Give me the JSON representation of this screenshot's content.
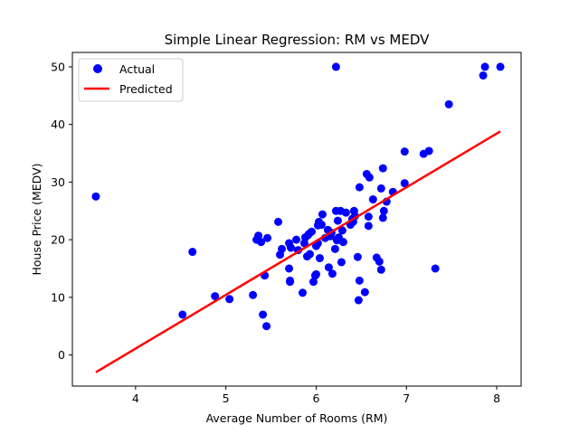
{
  "chart_data": {
    "type": "scatter",
    "title": "Simple Linear Regression: RM vs MEDV",
    "xlabel": "Average Number of Rooms (RM)",
    "ylabel": "House Price (MEDV)",
    "xlim": [
      3.3,
      8.27
    ],
    "ylim": [
      -5.4,
      52.5
    ],
    "xticks": [
      4,
      5,
      6,
      7,
      8
    ],
    "yticks": [
      0,
      10,
      20,
      30,
      40,
      50
    ],
    "grid": false,
    "legend": {
      "position": "top-left",
      "entries": [
        "Actual",
        "Predicted"
      ]
    },
    "colors": {
      "actual": "#0000ff",
      "predicted": "#ff0000"
    },
    "series": [
      {
        "name": "Actual",
        "kind": "scatter",
        "points": [
          [
            3.56,
            27.5
          ],
          [
            4.52,
            7.0
          ],
          [
            4.63,
            17.9
          ],
          [
            4.88,
            10.2
          ],
          [
            5.04,
            9.7
          ],
          [
            5.3,
            10.4
          ],
          [
            5.34,
            20.0
          ],
          [
            5.36,
            20.7
          ],
          [
            5.39,
            19.6
          ],
          [
            5.41,
            7.0
          ],
          [
            5.43,
            13.8
          ],
          [
            5.45,
            5.0
          ],
          [
            5.46,
            20.3
          ],
          [
            5.58,
            23.1
          ],
          [
            5.6,
            17.4
          ],
          [
            5.62,
            18.4
          ],
          [
            5.7,
            19.4
          ],
          [
            5.7,
            15.0
          ],
          [
            5.71,
            12.9
          ],
          [
            5.71,
            12.7
          ],
          [
            5.72,
            18.6
          ],
          [
            5.78,
            20.0
          ],
          [
            5.8,
            18.2
          ],
          [
            5.85,
            10.8
          ],
          [
            5.87,
            19.4
          ],
          [
            5.88,
            20.4
          ],
          [
            5.9,
            17.1
          ],
          [
            5.91,
            20.8
          ],
          [
            5.92,
            21.0
          ],
          [
            5.93,
            17.5
          ],
          [
            5.95,
            21.4
          ],
          [
            5.97,
            12.7
          ],
          [
            5.99,
            13.8
          ],
          [
            6.0,
            14.0
          ],
          [
            6.0,
            18.9
          ],
          [
            6.02,
            19.4
          ],
          [
            6.02,
            22.5
          ],
          [
            6.03,
            23.1
          ],
          [
            6.04,
            16.8
          ],
          [
            6.06,
            22.6
          ],
          [
            6.07,
            24.4
          ],
          [
            6.1,
            20.3
          ],
          [
            6.13,
            21.7
          ],
          [
            6.14,
            15.2
          ],
          [
            6.16,
            20.6
          ],
          [
            6.17,
            21.2
          ],
          [
            6.18,
            14.1
          ],
          [
            6.21,
            18.4
          ],
          [
            6.22,
            25.0
          ],
          [
            6.22,
            50.0
          ],
          [
            6.23,
            19.9
          ],
          [
            6.24,
            23.3
          ],
          [
            6.25,
            20.4
          ],
          [
            6.27,
            25.0
          ],
          [
            6.28,
            16.1
          ],
          [
            6.29,
            21.6
          ],
          [
            6.3,
            19.6
          ],
          [
            6.33,
            24.7
          ],
          [
            6.38,
            22.6
          ],
          [
            6.4,
            23.6
          ],
          [
            6.41,
            23.1
          ],
          [
            6.42,
            25.0
          ],
          [
            6.43,
            24.1
          ],
          [
            6.46,
            17.0
          ],
          [
            6.47,
            9.5
          ],
          [
            6.48,
            29.1
          ],
          [
            6.48,
            12.9
          ],
          [
            6.54,
            10.9
          ],
          [
            6.56,
            31.4
          ],
          [
            6.58,
            24.0
          ],
          [
            6.58,
            22.4
          ],
          [
            6.59,
            30.8
          ],
          [
            6.63,
            27.0
          ],
          [
            6.67,
            16.9
          ],
          [
            6.7,
            16.2
          ],
          [
            6.72,
            14.8
          ],
          [
            6.72,
            28.9
          ],
          [
            6.74,
            23.8
          ],
          [
            6.74,
            32.4
          ],
          [
            6.75,
            25.0
          ],
          [
            6.78,
            26.6
          ],
          [
            6.85,
            28.3
          ],
          [
            6.98,
            35.3
          ],
          [
            6.98,
            29.8
          ],
          [
            7.19,
            34.9
          ],
          [
            7.25,
            35.4
          ],
          [
            7.32,
            15.0
          ],
          [
            7.47,
            43.5
          ],
          [
            7.85,
            48.5
          ],
          [
            7.87,
            50.0
          ],
          [
            8.04,
            50.0
          ]
        ]
      },
      {
        "name": "Predicted",
        "kind": "line",
        "points": [
          [
            3.56,
            -3.0
          ],
          [
            8.04,
            38.8
          ]
        ]
      }
    ]
  }
}
